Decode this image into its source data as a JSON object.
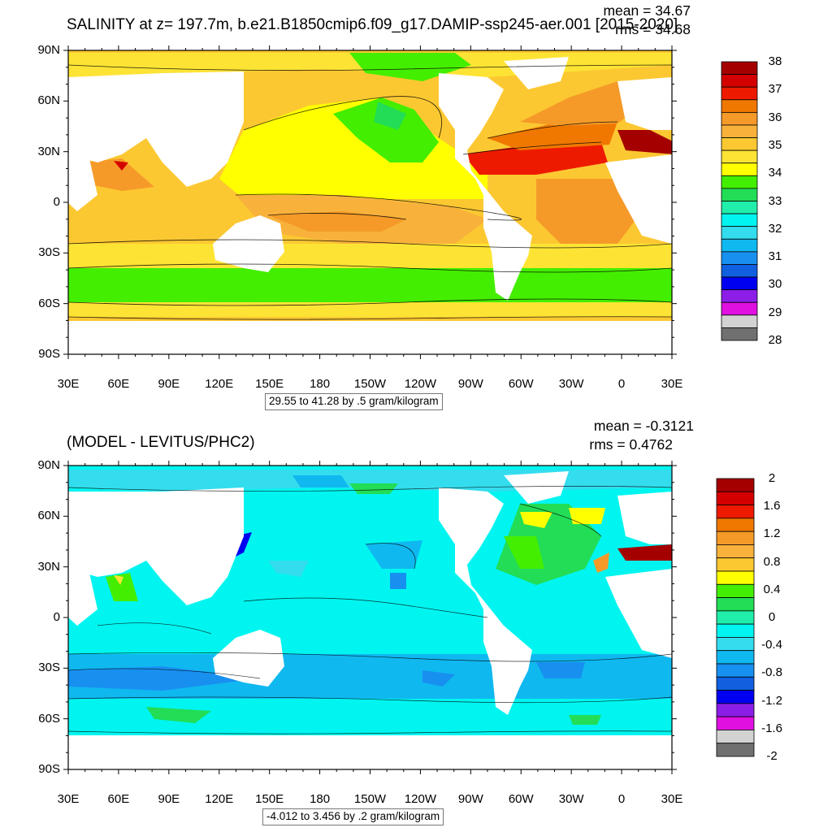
{
  "panels": [
    {
      "title": "SALINITY at z= 197.7m, b.e21.B1850cmip6.f09_g17.DAMIP-ssp245-aer.001 [2015-2020]",
      "stats": {
        "mean": "mean = 34.67",
        "rms": "rms = 34.68"
      },
      "lat_labels": [
        "90N",
        "60N",
        "30N",
        "0",
        "30S",
        "60S",
        "90S"
      ],
      "lon_labels": [
        "30E",
        "60E",
        "90E",
        "120E",
        "150E",
        "180",
        "150W",
        "120W",
        "90W",
        "60W",
        "30W",
        "0",
        "30E"
      ],
      "range_text": "29.55 to 41.28 by .5 gram/kilogram",
      "colorbar": {
        "labels": [
          "38",
          "37",
          "36",
          "35",
          "34",
          "33",
          "32",
          "31",
          "30",
          "29",
          "28"
        ],
        "colors": [
          "#a50000",
          "#d40000",
          "#ee1a00",
          "#f07800",
          "#f59a28",
          "#f8b23c",
          "#fcc832",
          "#fde434",
          "#ffff00",
          "#44ee00",
          "#22dd55",
          "#20eeaa",
          "#00f5f0",
          "#33ddee",
          "#10b8f0",
          "#1890f0",
          "#1060e0",
          "#0000f0",
          "#8c1ee8",
          "#e010e0",
          "#d2d2d2",
          "#707070"
        ]
      }
    },
    {
      "title": "(MODEL - LEVITUS/PHC2)",
      "stats": {
        "mean": "mean = -0.3121",
        "rms": "rms = 0.4762"
      },
      "lat_labels": [
        "90N",
        "60N",
        "30N",
        "0",
        "30S",
        "60S",
        "90S"
      ],
      "lon_labels": [
        "30E",
        "60E",
        "90E",
        "120E",
        "150E",
        "180",
        "150W",
        "120W",
        "90W",
        "60W",
        "30W",
        "0",
        "30E"
      ],
      "range_text": "-4.012 to 3.456 by .2 gram/kilogram",
      "colorbar": {
        "labels": [
          "2",
          "1.6",
          "1.2",
          "0.8",
          "0.4",
          "0",
          "-0.4",
          "-0.8",
          "-1.2",
          "-1.6",
          "-2"
        ],
        "colors": [
          "#a50000",
          "#d40000",
          "#ee1a00",
          "#f07800",
          "#f59a28",
          "#f8b23c",
          "#fcc832",
          "#ffff00",
          "#44ee00",
          "#22dd55",
          "#20eeaa",
          "#00f5f0",
          "#33ddee",
          "#10b8f0",
          "#1890f0",
          "#1060e0",
          "#0000f0",
          "#8c1ee8",
          "#e010e0",
          "#d2d2d2",
          "#707070"
        ]
      }
    }
  ]
}
